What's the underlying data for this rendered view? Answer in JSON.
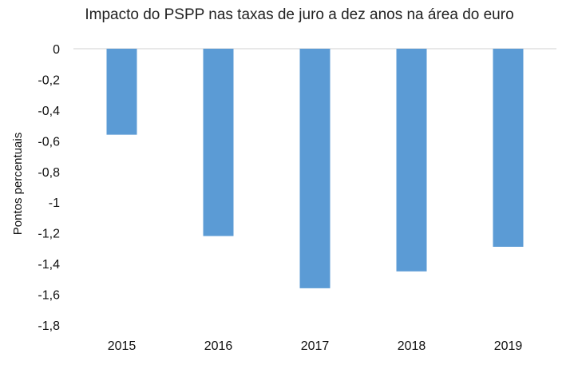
{
  "chart_data": {
    "type": "bar",
    "title": "Impacto do PSPP nas taxas de juro a dez anos na área do euro",
    "xlabel": "",
    "ylabel": "Pontos percentuais",
    "categories": [
      "2015",
      "2016",
      "2017",
      "2018",
      "2019"
    ],
    "values": [
      -0.56,
      -1.22,
      -1.56,
      -1.45,
      -1.29
    ],
    "ylim": [
      -1.8,
      0
    ],
    "yticks": [
      0,
      -0.2,
      -0.4,
      -0.6,
      -0.8,
      -1,
      -1.2,
      -1.4,
      -1.6,
      -1.8
    ],
    "ytick_labels": [
      "0",
      "-0,2",
      "-0,4",
      "-0,6",
      "-0,8",
      "-1",
      "-1,2",
      "-1,4",
      "-1,6",
      "-1,8"
    ],
    "bar_color": "#5b9bd5",
    "axis_color": "#d9d9d9",
    "grid": false,
    "legend": "none"
  }
}
